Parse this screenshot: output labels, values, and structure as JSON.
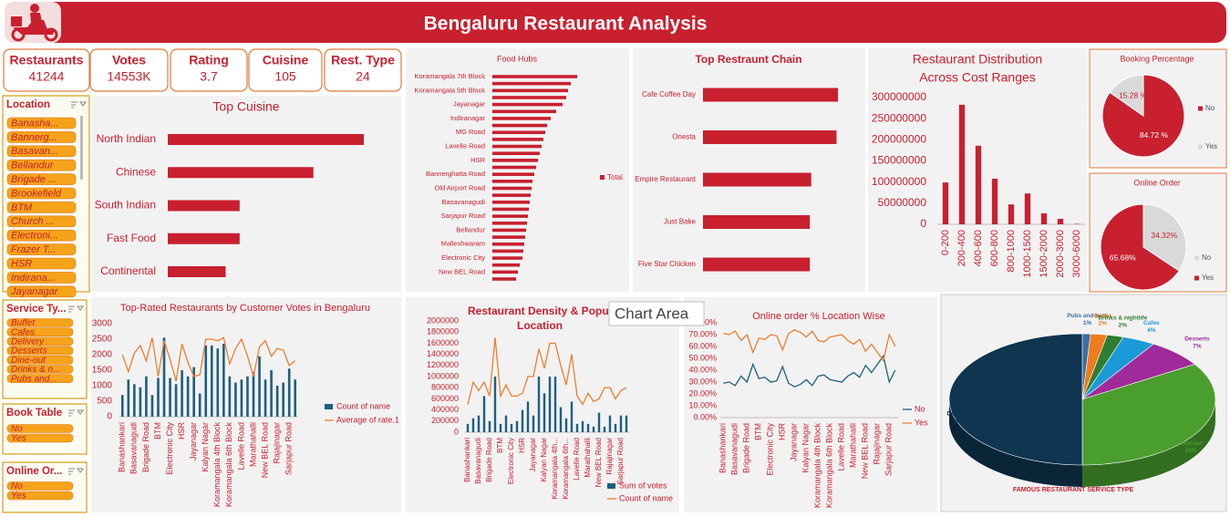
{
  "header": {
    "title": "Bengaluru Restaurant Analysis"
  },
  "kpis": [
    {
      "label": "Restaurants",
      "value": 41244
    },
    {
      "label": "Votes",
      "value": "14553K"
    },
    {
      "label": "Rating",
      "value": 3.7
    },
    {
      "label": "Cuisine",
      "value": 105
    },
    {
      "label": "Rest. Type",
      "value": 24
    }
  ],
  "slicers": [
    {
      "title": "Location",
      "items": [
        "Banasha...",
        "Bannerg...",
        "Basavan...",
        "Bellandur",
        "Brigade ...",
        "Brookefield",
        "BTM",
        "Church ...",
        "Electroni...",
        "Frazer T...",
        "HSR",
        "Indirana...",
        "Jayanagar"
      ]
    },
    {
      "title": "Service Ty...",
      "items": [
        "Buffet",
        "Cafes",
        "Delivery",
        "Desserts",
        "Dine-out",
        "Drinks & n...",
        "Pubs and..."
      ]
    },
    {
      "title": "Book Table",
      "items": [
        "No",
        "Yes"
      ]
    },
    {
      "title": "Online Or...",
      "items": [
        "No",
        "Yes"
      ]
    }
  ],
  "tooltip": "Chart Area",
  "chart_data": [
    {
      "type": "bar",
      "orientation": "horizontal",
      "title": "Top Cuisine",
      "categories": [
        "North Indian",
        "Chinese",
        "South Indian",
        "Fast Food",
        "Continental"
      ],
      "values": [
        21000,
        15600,
        7700,
        7700,
        6200
      ],
      "color": "#c8202f"
    },
    {
      "type": "bar",
      "orientation": "horizontal",
      "title": "Food Hubs",
      "categories": [
        "Koramangala 7th Block",
        null,
        "Koramangala 5th Block",
        null,
        "Jayanagar",
        null,
        "Indiranagar",
        null,
        "MG Road",
        null,
        "Lavelle Road",
        null,
        "HSR",
        null,
        "Bannerghatta Road",
        null,
        "Old Airport Road",
        null,
        "Basavanagudi",
        null,
        "Sarjapur Road",
        null,
        "Bellandur",
        null,
        "Malleshwaram",
        null,
        "Electronic City",
        null,
        "New BEL Road",
        null
      ],
      "series": [
        {
          "name": "Total",
          "color": "#c8202f",
          "values": [
            4650,
            4300,
            4150,
            4050,
            3850,
            3500,
            3200,
            3000,
            2900,
            2800,
            2700,
            2600,
            2500,
            2400,
            2300,
            2200,
            2150,
            2100,
            2050,
            2000,
            1950,
            1900,
            1850,
            1800,
            1750,
            1700,
            1650,
            1500,
            1400,
            1300
          ]
        }
      ]
    },
    {
      "type": "bar",
      "orientation": "horizontal",
      "title": "Top Restraunt Chain",
      "categories": [
        "Cafe Coffee Day",
        "Onesta",
        "Empire Restaurant",
        "Just Bake",
        "Five Star Chicken"
      ],
      "values": [
        96,
        95,
        77,
        76,
        76
      ],
      "color": "#c8202f"
    },
    {
      "type": "bar",
      "title": [
        "Restaurant Distribution",
        "Across Cost Ranges"
      ],
      "categories": [
        "0-200",
        "200-400",
        "400-600",
        "600-800",
        "800-1000",
        "1000-1500",
        "1500-2000",
        "2000-3000",
        "3000-6000"
      ],
      "values": [
        99000000,
        283000000,
        186000000,
        108000000,
        47000000,
        73000000,
        26000000,
        13000000,
        1000000
      ],
      "color": "#c8202f",
      "ylim": [
        0,
        300000000
      ],
      "yticks": [
        0,
        50000000,
        100000000,
        150000000,
        200000000,
        250000000,
        300000000
      ]
    },
    {
      "type": "pie",
      "title": "Booking Percentage",
      "categories": [
        "No",
        "Yes"
      ],
      "values": [
        84.72,
        15.28
      ],
      "value_labels": [
        "84.72 %",
        "15.28 %"
      ],
      "colors": [
        "#c8202f",
        "#d9d9d9"
      ]
    },
    {
      "type": "pie",
      "title": "Online Order",
      "categories": [
        "No",
        "Yes"
      ],
      "values": [
        34.32,
        65.68
      ],
      "value_labels": [
        "34.32%",
        "65.68%"
      ],
      "colors": [
        "#d9d9d9",
        "#c8202f"
      ]
    },
    {
      "type": "combo",
      "title": "Top-Rated Restaurants by Customer Votes in Bengaluru",
      "categories": [
        "Banashankari",
        null,
        "Basavanagudi",
        null,
        "Brigade Road",
        null,
        "BTM",
        null,
        "Electronic City",
        null,
        "HSR",
        null,
        "Jayanagar",
        null,
        "Kalyan Nagar",
        null,
        "Koramangala 4th Block",
        null,
        "Koramangala 6th Block",
        null,
        "Lavelle Road",
        null,
        "Marathahalli",
        null,
        "New BEL Road",
        null,
        "Rajajinagar",
        null,
        "Sarjapur Road",
        null
      ],
      "ylim": [
        0,
        3000
      ],
      "yticks": [
        0,
        500,
        1000,
        1500,
        2000,
        2500,
        3000
      ],
      "series": [
        {
          "name": "Count of name",
          "type": "bar",
          "color": "#1f5f7f",
          "values": [
            700,
            1200,
            1050,
            950,
            1300,
            700,
            1250,
            2550,
            1250,
            1050,
            1500,
            1300,
            1600,
            750,
            2300,
            2300,
            2200,
            2350,
            1300,
            1100,
            1200,
            1300,
            1450,
            1950,
            1200,
            1500,
            1000,
            1100,
            1550,
            1200
          ]
        },
        {
          "name": "Average of rate.1",
          "type": "line",
          "color": "#ed7d31",
          "values": [
            2000,
            1450,
            2050,
            2300,
            1800,
            2550,
            1300,
            2450,
            1850,
            1150,
            2350,
            1750,
            1300,
            1350,
            2500,
            2500,
            2450,
            2550,
            1700,
            2200,
            2500,
            1950,
            1300,
            2250,
            2450,
            1950,
            2200,
            2150,
            1650,
            1800
          ]
        }
      ]
    },
    {
      "type": "combo",
      "title": [
        "Restaurant Density & Popul",
        "Location"
      ],
      "categories": [
        "Banashankari",
        null,
        "Basavanagudi",
        null,
        "Brigade Road",
        null,
        "BTM",
        null,
        "Electronic City",
        null,
        "HSR",
        null,
        "Jayanagar",
        null,
        "Kalyan Nagar",
        null,
        "Koramangala 4th...",
        null,
        "Koramangala 6th...",
        null,
        "Lavelle Road",
        null,
        "Marathahalli",
        null,
        "New BEL Road",
        null,
        "Rajajinagar",
        null,
        "Sarjapur Road",
        null
      ],
      "ylim": [
        0,
        2000000
      ],
      "yticks": [
        0,
        200000,
        400000,
        600000,
        800000,
        1000000,
        1200000,
        1400000,
        1600000,
        1800000,
        2000000
      ],
      "series": [
        {
          "name": "Sum of votes",
          "type": "bar",
          "color": "#1f5f7f",
          "values": [
            150000,
            250000,
            300000,
            650000,
            200000,
            1000000,
            150000,
            300000,
            150000,
            200000,
            400000,
            550000,
            300000,
            1000000,
            700000,
            1000000,
            1000000,
            450000,
            250000,
            550000,
            150000,
            200000,
            150000,
            100000,
            350000,
            100000,
            300000,
            150000,
            300000,
            300000
          ]
        },
        {
          "name": "Count of name",
          "type": "line",
          "color": "#ed7d31",
          "values": [
            500000,
            900000,
            750000,
            900000,
            650000,
            1700000,
            650000,
            850000,
            650000,
            650000,
            700000,
            1000000,
            1000000,
            1500000,
            1150000,
            1600000,
            1600000,
            1200000,
            850000,
            1400000,
            650000,
            500000,
            700000,
            550000,
            600000,
            800000,
            800000,
            600000,
            750000,
            800000
          ]
        }
      ]
    },
    {
      "type": "line",
      "title": "Online order % Location Wise",
      "categories": [
        "Banashankari",
        null,
        "Basavanagudi",
        null,
        "Brigade Road",
        null,
        "BTM",
        null,
        "Electronic City",
        null,
        "HSR",
        null,
        "Jayanagar",
        null,
        "Kalyan Nagar",
        null,
        "Koramangala 4th Block",
        null,
        "Koramangala 6th Block",
        null,
        "Lavelle Road",
        null,
        "Marathahalli",
        null,
        "New BEL Road",
        null,
        "Rajajinagar",
        null,
        "Sarjapur Road",
        null
      ],
      "ylim": [
        0,
        80
      ],
      "yticks": [
        {
          "value": 0,
          "label": "0.00%"
        },
        {
          "value": 10,
          "label": "10.00%"
        },
        {
          "value": 20,
          "label": "20.00%"
        },
        {
          "value": 30,
          "label": "30.00%"
        },
        {
          "value": 40,
          "label": "40.00%"
        },
        {
          "value": 50,
          "label": "50.00%"
        },
        {
          "value": 60,
          "label": "60.00%"
        },
        {
          "value": 70,
          "label": "70.00%"
        },
        {
          "value": 80,
          "label": "80.00%"
        }
      ],
      "series": [
        {
          "name": "No",
          "color": "#1f5f7f",
          "values": [
            29,
            30,
            27,
            35,
            30,
            45,
            33,
            34,
            30,
            31,
            43,
            29,
            26,
            28,
            32,
            27,
            35,
            36,
            32,
            31,
            30,
            35,
            38,
            34,
            44,
            38,
            45,
            52,
            30,
            40
          ]
        },
        {
          "name": "Yes",
          "color": "#ed7d31",
          "values": [
            71,
            70,
            73,
            65,
            70,
            55,
            67,
            66,
            70,
            69,
            57,
            71,
            74,
            72,
            68,
            73,
            65,
            64,
            68,
            69,
            70,
            65,
            62,
            66,
            56,
            62,
            55,
            48,
            70,
            60
          ]
        }
      ]
    },
    {
      "type": "pie3d",
      "title": "FAMOUS RESTAURANT SERVICE TYPE",
      "categories": [
        "Pubs and bars",
        "Buffet",
        "Drinks & nightlife",
        "Cafes",
        "Desserts",
        "Dine-out",
        "Delivery"
      ],
      "values": [
        1,
        2,
        2,
        4,
        7,
        34,
        50
      ],
      "value_labels": [
        "1%",
        "2%",
        "2%",
        "4%",
        "7%",
        "34%",
        "50%"
      ],
      "colors": [
        "#3a6ea5",
        "#f07b1e",
        "#2e7d32",
        "#1a9ad6",
        "#a02a9a",
        "#4a9e2e",
        "#0f3550"
      ]
    }
  ]
}
